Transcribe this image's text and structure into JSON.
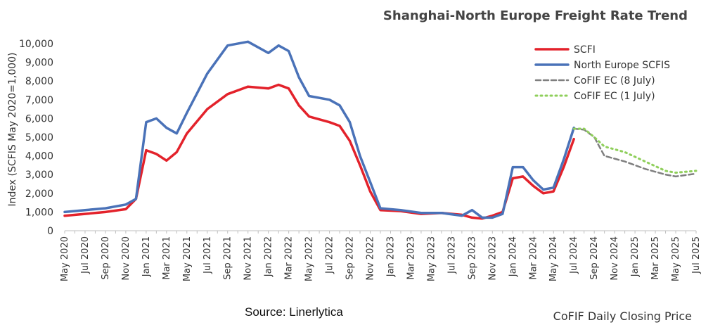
{
  "chart_data": {
    "type": "line",
    "title": "Shanghai-North Europe Freight Rate Trend",
    "ylabel": "Index (SCFIS May 2020=1,000)",
    "xlabel": "",
    "source": "Source: Linerlytica",
    "footer": "CoFIF Daily Closing Price",
    "ylim": [
      0,
      10000
    ],
    "yticks": [
      0,
      1000,
      2000,
      3000,
      4000,
      5000,
      6000,
      7000,
      8000,
      9000,
      10000
    ],
    "ytick_labels": [
      "0",
      "1,000",
      "2,000",
      "3,000",
      "4,000",
      "5,000",
      "6,000",
      "7,000",
      "8,000",
      "9,000",
      "10,000"
    ],
    "xrange": [
      "2020-05",
      "2025-07"
    ],
    "xticks": [
      "May 2020",
      "Jul 2020",
      "Sep 2020",
      "Nov 2020",
      "Jan 2021",
      "Mar 2021",
      "May 2021",
      "Jul 2021",
      "Sep 2021",
      "Nov 2021",
      "Jan 2022",
      "Mar 2022",
      "May 2022",
      "Jul 2022",
      "Sep 2022",
      "Nov 2022",
      "Jan 2023",
      "Mar 2023",
      "May 2023",
      "Jul 2023",
      "Sep 2023",
      "Nov 2023",
      "Jan 2024",
      "Mar 2024",
      "May 2024",
      "Jul 2024",
      "Sep 2024",
      "Nov 2024",
      "Jan 2025",
      "Mar 2025",
      "May 2025",
      "Jul 2025"
    ],
    "grid": false,
    "legend": "top-right",
    "series": [
      {
        "name": "SCFI",
        "color": "#e3222b",
        "style": "solid",
        "points": [
          [
            "2020-05",
            800
          ],
          [
            "2020-07",
            900
          ],
          [
            "2020-09",
            1000
          ],
          [
            "2020-11",
            1150
          ],
          [
            "2020-12",
            1700
          ],
          [
            "2021-01",
            4300
          ],
          [
            "2021-02",
            4100
          ],
          [
            "2021-03",
            3750
          ],
          [
            "2021-04",
            4200
          ],
          [
            "2021-05",
            5200
          ],
          [
            "2021-07",
            6500
          ],
          [
            "2021-09",
            7300
          ],
          [
            "2021-11",
            7700
          ],
          [
            "2022-01",
            7600
          ],
          [
            "2022-02",
            7800
          ],
          [
            "2022-03",
            7600
          ],
          [
            "2022-04",
            6700
          ],
          [
            "2022-05",
            6100
          ],
          [
            "2022-07",
            5800
          ],
          [
            "2022-08",
            5600
          ],
          [
            "2022-09",
            4800
          ],
          [
            "2022-10",
            3500
          ],
          [
            "2022-11",
            2100
          ],
          [
            "2022-12",
            1100
          ],
          [
            "2023-02",
            1050
          ],
          [
            "2023-04",
            900
          ],
          [
            "2023-06",
            950
          ],
          [
            "2023-08",
            850
          ],
          [
            "2023-09",
            700
          ],
          [
            "2023-10",
            650
          ],
          [
            "2023-11",
            800
          ],
          [
            "2023-12",
            1000
          ],
          [
            "2024-01",
            2800
          ],
          [
            "2024-02",
            2900
          ],
          [
            "2024-03",
            2400
          ],
          [
            "2024-04",
            2000
          ],
          [
            "2024-05",
            2100
          ],
          [
            "2024-06",
            3400
          ],
          [
            "2024-07",
            4900
          ]
        ]
      },
      {
        "name": "North Europe SCFIS",
        "color": "#4a72b8",
        "style": "solid",
        "points": [
          [
            "2020-05",
            1000
          ],
          [
            "2020-07",
            1100
          ],
          [
            "2020-09",
            1200
          ],
          [
            "2020-11",
            1400
          ],
          [
            "2020-12",
            1700
          ],
          [
            "2021-01",
            5800
          ],
          [
            "2021-02",
            6000
          ],
          [
            "2021-03",
            5500
          ],
          [
            "2021-04",
            5200
          ],
          [
            "2021-05",
            6300
          ],
          [
            "2021-07",
            8400
          ],
          [
            "2021-09",
            9900
          ],
          [
            "2021-11",
            10100
          ],
          [
            "2022-01",
            9500
          ],
          [
            "2022-02",
            9900
          ],
          [
            "2022-03",
            9600
          ],
          [
            "2022-04",
            8200
          ],
          [
            "2022-05",
            7200
          ],
          [
            "2022-07",
            7000
          ],
          [
            "2022-08",
            6700
          ],
          [
            "2022-09",
            5800
          ],
          [
            "2022-10",
            4000
          ],
          [
            "2022-11",
            2600
          ],
          [
            "2022-12",
            1200
          ],
          [
            "2023-02",
            1100
          ],
          [
            "2023-04",
            950
          ],
          [
            "2023-06",
            950
          ],
          [
            "2023-08",
            800
          ],
          [
            "2023-09",
            1100
          ],
          [
            "2023-10",
            700
          ],
          [
            "2023-11",
            700
          ],
          [
            "2023-12",
            900
          ],
          [
            "2024-01",
            3400
          ],
          [
            "2024-02",
            3400
          ],
          [
            "2024-03",
            2700
          ],
          [
            "2024-04",
            2200
          ],
          [
            "2024-05",
            2300
          ],
          [
            "2024-06",
            3800
          ],
          [
            "2024-07",
            5500
          ]
        ]
      },
      {
        "name": "CoFIF EC (8 July)",
        "color": "#7f7f7f",
        "style": "dashed",
        "points": [
          [
            "2024-07",
            5450
          ],
          [
            "2024-08",
            5400
          ],
          [
            "2024-09",
            5000
          ],
          [
            "2024-10",
            4000
          ],
          [
            "2024-12",
            3700
          ],
          [
            "2025-02",
            3300
          ],
          [
            "2025-04",
            3000
          ],
          [
            "2025-05",
            2900
          ],
          [
            "2025-07",
            3050
          ]
        ]
      },
      {
        "name": "CoFIF EC (1 July)",
        "color": "#8fcf5b",
        "style": "dotted",
        "points": [
          [
            "2024-07",
            5450
          ],
          [
            "2024-08",
            5450
          ],
          [
            "2024-09",
            5000
          ],
          [
            "2024-10",
            4500
          ],
          [
            "2024-12",
            4200
          ],
          [
            "2025-02",
            3700
          ],
          [
            "2025-04",
            3200
          ],
          [
            "2025-05",
            3100
          ],
          [
            "2025-07",
            3200
          ]
        ]
      }
    ]
  }
}
